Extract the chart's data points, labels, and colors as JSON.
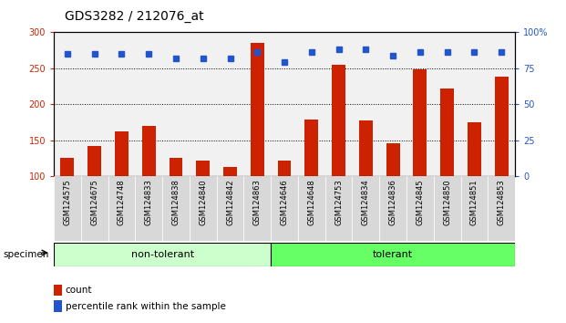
{
  "title": "GDS3282 / 212076_at",
  "categories": [
    "GSM124575",
    "GSM124675",
    "GSM124748",
    "GSM124833",
    "GSM124838",
    "GSM124840",
    "GSM124842",
    "GSM124863",
    "GSM124646",
    "GSM124648",
    "GSM124753",
    "GSM124834",
    "GSM124836",
    "GSM124845",
    "GSM124850",
    "GSM124851",
    "GSM124853"
  ],
  "bar_values": [
    125,
    142,
    162,
    170,
    125,
    122,
    112,
    285,
    122,
    178,
    255,
    177,
    145,
    248,
    222,
    175,
    238
  ],
  "dot_values_pct": [
    85,
    85,
    85,
    85,
    82,
    82,
    82,
    86,
    79,
    86,
    88,
    88,
    84,
    86,
    86,
    86,
    86
  ],
  "non_tolerant_count": 8,
  "groups": [
    {
      "label": "non-tolerant",
      "color": "#ccffcc"
    },
    {
      "label": "tolerant",
      "color": "#66ff66"
    }
  ],
  "bar_color": "#cc2200",
  "dot_color": "#2255cc",
  "ylim_left": [
    100,
    300
  ],
  "ylim_right": [
    0,
    100
  ],
  "yticks_left": [
    100,
    150,
    200,
    250,
    300
  ],
  "yticks_right": [
    0,
    25,
    50,
    75,
    100
  ],
  "grid_values": [
    150,
    200,
    250
  ],
  "specimen_label": "specimen",
  "legend_count_label": "count",
  "legend_pct_label": "percentile rank within the sample",
  "title_fontsize": 10,
  "tick_fontsize": 7,
  "xtick_fontsize": 6,
  "group_fontsize": 8,
  "legend_fontsize": 7.5,
  "col_bg_color": "#dddddd",
  "background_color": "#ffffff"
}
